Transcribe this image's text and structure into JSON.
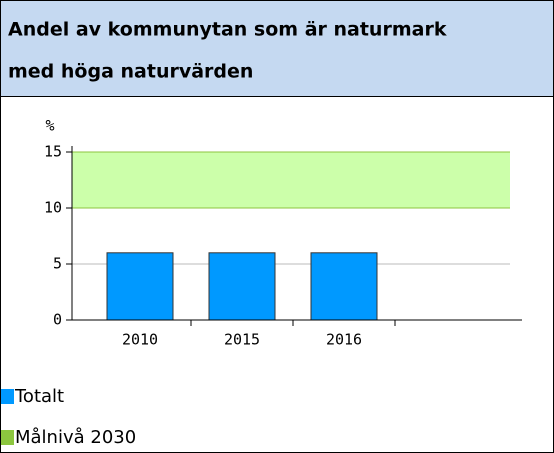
{
  "header": {
    "title_lines": [
      "Andel av kommunytan som är naturmark",
      "med höga naturvärden"
    ]
  },
  "chart_data": {
    "type": "bar",
    "y_label": "%",
    "categories": [
      "2010",
      "2015",
      "2016"
    ],
    "series": [
      {
        "name": "Totalt",
        "color": "#0099ff",
        "values": [
          6,
          6,
          6
        ]
      }
    ],
    "target": {
      "name": "Målnivå 2030",
      "color": "#ccffaa",
      "range": [
        10,
        15
      ]
    },
    "ylim": [
      0,
      15
    ],
    "yticks": [
      0,
      5,
      10,
      15
    ],
    "grid": true
  }
}
